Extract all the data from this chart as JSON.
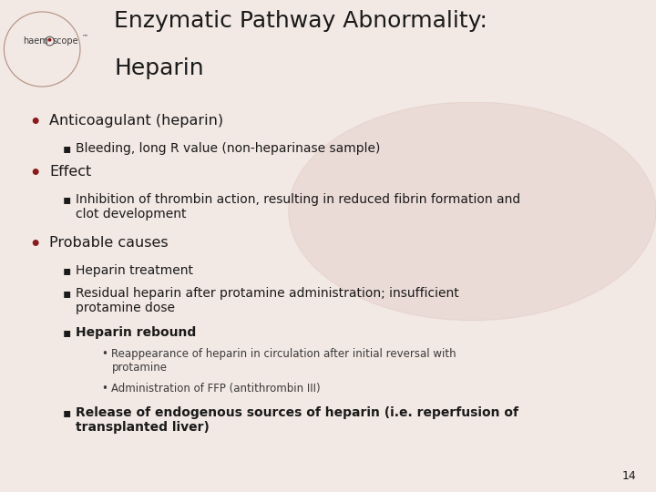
{
  "title_line1": "Enzymatic Pathway Abnormality:",
  "title_line2": "Heparin",
  "background_color": "#f2e8e4",
  "header_bg_color": "#dfc5bb",
  "body_bg_color": "#f0e8e4",
  "title_color": "#1a1a1a",
  "bullet_color": "#8b1a1a",
  "text_color": "#1a1a1a",
  "subtext_color": "#3a3a3a",
  "page_number": "14",
  "left_bar_color": "#c9a090",
  "watermark_color": "#dbbfb8",
  "title_fontsize": 18,
  "body_fontsize": 11,
  "sub_fontsize": 10,
  "subsub_fontsize": 8.5,
  "logo_fontsize": 7
}
